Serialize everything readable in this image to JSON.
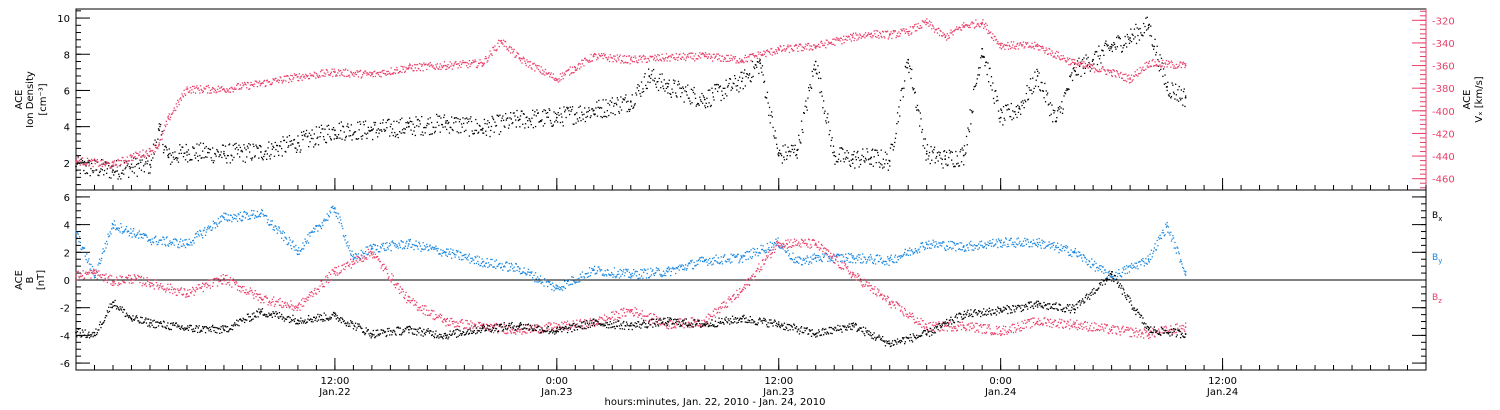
{
  "figure": {
    "xlabel": "hours:minutes, Jan. 22, 2010 - Jan. 24, 2010",
    "x_range_hours": [
      -2.0,
      71.0
    ],
    "x_ticks": [
      {
        "hours": 12,
        "time": "12:00",
        "date": "Jan.22"
      },
      {
        "hours": 24,
        "time": "0:00",
        "date": "Jan.23"
      },
      {
        "hours": 36,
        "time": "12:00",
        "date": "Jan.23"
      },
      {
        "hours": 48,
        "time": "0:00",
        "date": "Jan.24"
      },
      {
        "hours": 60,
        "time": "12:00",
        "date": "Jan.24"
      }
    ]
  },
  "colors": {
    "density": "#000000",
    "velocity": "#e8406a",
    "bx": "#000000",
    "by": "#1a87e0",
    "bz": "#e8406a",
    "axis": "#000000"
  },
  "chart_data": [
    {
      "type": "scatter",
      "panel": "top",
      "grid": false,
      "left_axis": {
        "label_lines": [
          "ACE",
          "Ion Density",
          "[cm⁻³]"
        ],
        "ylim": [
          0.5,
          10.5
        ],
        "ticks": [
          "2",
          "4",
          "6",
          "8",
          "10"
        ],
        "tick_values": [
          2,
          4,
          6,
          8,
          10
        ]
      },
      "right_axis": {
        "label_lines": [
          "ACE",
          "Vₓ [km/s]"
        ],
        "ylim": [
          -470,
          -310
        ],
        "ticks": [
          "-320",
          "-340",
          "-360",
          "-380",
          "-400",
          "-420",
          "-440",
          "-460"
        ],
        "tick_values": [
          -320,
          -340,
          -360,
          -380,
          -400,
          -420,
          -440,
          -460
        ]
      },
      "series": [
        {
          "key": "density",
          "axis": "left",
          "x_hours": [
            -2,
            0,
            2,
            2.5,
            3,
            4,
            6,
            8,
            10,
            12,
            14,
            16,
            18,
            20,
            22,
            24,
            26,
            28,
            29,
            30,
            32,
            34,
            35,
            36,
            37,
            38,
            39,
            40,
            41,
            42,
            43,
            44,
            45,
            46,
            47,
            48,
            49,
            50,
            51,
            52,
            53,
            54,
            55,
            56,
            57,
            58
          ],
          "values": [
            1.8,
            1.6,
            1.9,
            3.8,
            2.3,
            2.6,
            2.5,
            2.6,
            3.1,
            3.8,
            3.8,
            4.0,
            4.2,
            3.9,
            4.4,
            4.5,
            4.9,
            5.4,
            6.8,
            6.2,
            5.5,
            6.5,
            7.5,
            2.4,
            2.7,
            7.6,
            2.4,
            2.2,
            2.3,
            2.1,
            7.7,
            2.5,
            2.2,
            2.4,
            8.3,
            4.5,
            5.0,
            6.8,
            4.3,
            7.1,
            7.7,
            8.4,
            8.9,
            9.6,
            6.2,
            5.6
          ]
        },
        {
          "key": "velocity",
          "axis": "right",
          "x_hours": [
            -2,
            0,
            1,
            2,
            2.5,
            3,
            4,
            6,
            8,
            10,
            12,
            14,
            16,
            18,
            20,
            21,
            22,
            24,
            25,
            26,
            28,
            30,
            32,
            34,
            36,
            38,
            40,
            41,
            42,
            43,
            44,
            45,
            46,
            47,
            48,
            50,
            52,
            54,
            55,
            56,
            58
          ],
          "values": [
            -444,
            -448,
            -441,
            -436,
            -430,
            -407,
            -381,
            -381,
            -376,
            -370,
            -366,
            -368,
            -362,
            -360,
            -358,
            -338,
            -354,
            -372,
            -362,
            -352,
            -355,
            -353,
            -352,
            -355,
            -346,
            -343,
            -335,
            -332,
            -333,
            -330,
            -322,
            -335,
            -325,
            -322,
            -342,
            -343,
            -358,
            -366,
            -372,
            -358,
            -360
          ]
        }
      ]
    },
    {
      "type": "scatter",
      "panel": "bottom",
      "grid": false,
      "left_axis": {
        "label_lines": [
          "ACE",
          "B",
          "[nT]"
        ],
        "ylim": [
          -6.5,
          6.5
        ],
        "ticks": [
          "-6",
          "-4",
          "-2",
          "0",
          "2",
          "4",
          "6"
        ],
        "tick_values": [
          -6,
          -4,
          -2,
          0,
          2,
          4,
          6
        ]
      },
      "zero_line": true,
      "series": [
        {
          "key": "bx",
          "name": "Bx",
          "x_hours": [
            -2,
            -1,
            0,
            1,
            2,
            4,
            6,
            8,
            10,
            12,
            14,
            16,
            18,
            20,
            22,
            24,
            26,
            28,
            30,
            32,
            34,
            36,
            38,
            40,
            42,
            44,
            46,
            48,
            50,
            52,
            54,
            56,
            58
          ],
          "values": [
            -3.8,
            -4.0,
            -1.6,
            -2.8,
            -3.1,
            -3.5,
            -3.6,
            -2.3,
            -2.9,
            -2.6,
            -3.9,
            -3.6,
            -4.0,
            -3.5,
            -3.3,
            -3.7,
            -3.1,
            -3.3,
            -3.0,
            -3.2,
            -2.8,
            -3.2,
            -3.9,
            -3.3,
            -4.6,
            -3.9,
            -2.5,
            -2.2,
            -1.8,
            -2.1,
            0.4,
            -3.6,
            -3.9
          ]
        },
        {
          "key": "by",
          "name": "By",
          "x_hours": [
            -2,
            -1,
            0,
            2,
            4,
            6,
            7,
            8,
            10,
            12,
            13,
            14,
            16,
            18,
            20,
            22,
            24,
            26,
            28,
            30,
            32,
            34,
            36,
            37,
            38,
            40,
            42,
            44,
            46,
            48,
            50,
            52,
            54,
            56,
            57,
            58
          ],
          "values": [
            3.4,
            0.3,
            4.0,
            2.9,
            2.6,
            4.5,
            4.6,
            4.8,
            2.1,
            5.2,
            1.5,
            2.3,
            2.6,
            2.0,
            1.3,
            0.8,
            -0.6,
            0.7,
            0.4,
            0.6,
            1.4,
            1.6,
            2.7,
            1.3,
            1.6,
            1.6,
            1.4,
            2.6,
            2.4,
            2.7,
            2.7,
            2.0,
            0.2,
            1.5,
            3.9,
            0.6
          ]
        },
        {
          "key": "bz",
          "name": "Bz",
          "x_hours": [
            -2,
            -1,
            0,
            1,
            2,
            4,
            6,
            8,
            10,
            12,
            14,
            16,
            18,
            20,
            22,
            24,
            26,
            28,
            30,
            32,
            34,
            36,
            38,
            40,
            42,
            44,
            46,
            48,
            50,
            52,
            54,
            56,
            58
          ],
          "values": [
            0.3,
            0.5,
            -0.1,
            0.1,
            -0.2,
            -1.0,
            0.1,
            -1.3,
            -2.0,
            0.6,
            2.0,
            -1.5,
            -3.0,
            -3.4,
            -3.6,
            -3.4,
            -3.1,
            -2.2,
            -3.2,
            -3.0,
            -0.8,
            2.7,
            2.6,
            0.4,
            -1.6,
            -3.4,
            -3.3,
            -3.7,
            -3.0,
            -3.2,
            -3.6,
            -3.9,
            -3.4
          ]
        }
      ]
    }
  ]
}
